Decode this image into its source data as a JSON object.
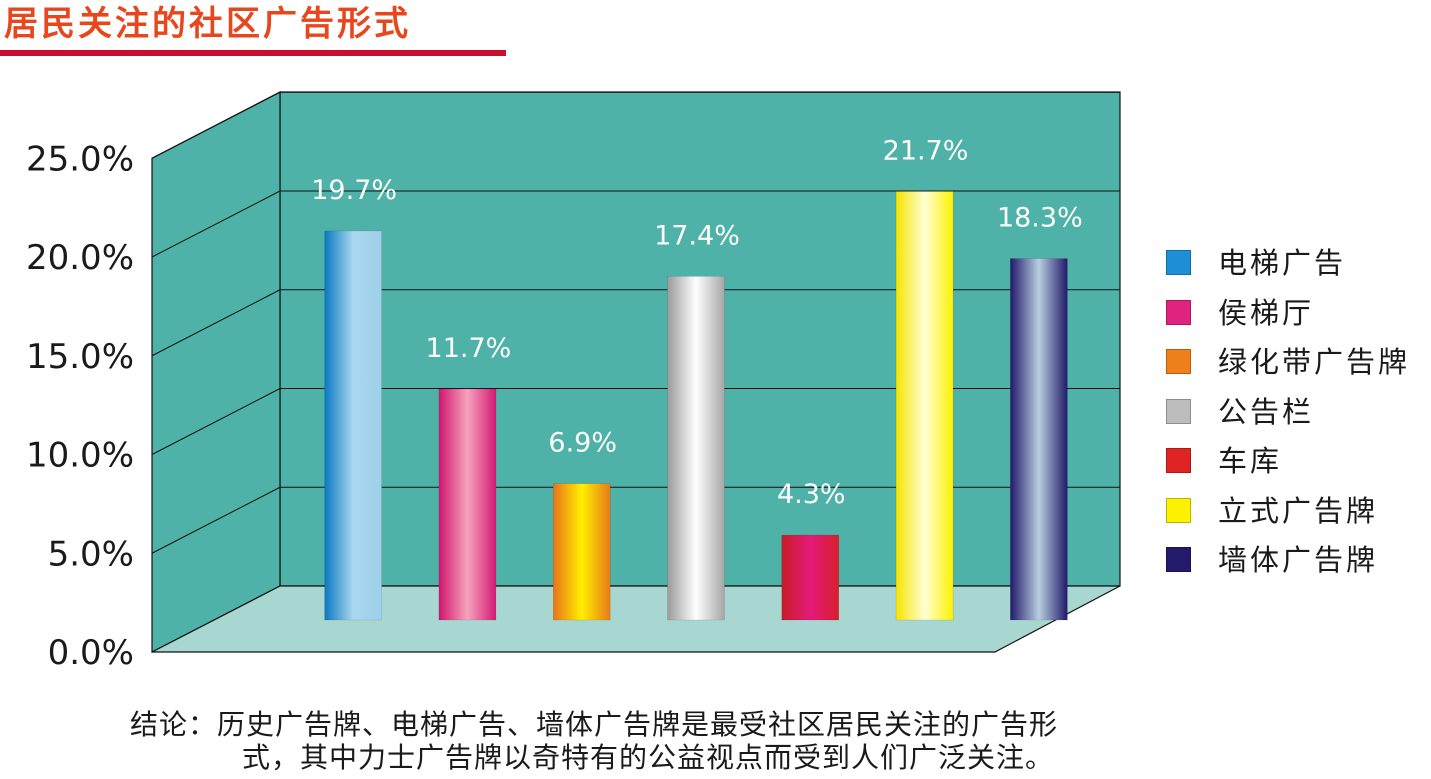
{
  "header": {
    "title": "居民关注的社区广告形式",
    "title_color": "#e8461c",
    "rule_color": "#c8102e"
  },
  "chart_data": {
    "type": "bar",
    "title": "居民关注的社区广告形式",
    "xlabel": "",
    "ylabel": "",
    "ylim": [
      0,
      25
    ],
    "yticks": [
      0,
      5,
      10,
      15,
      20,
      25
    ],
    "ytick_labels": [
      "0.0%",
      "5.0%",
      "10.0%",
      "15.0%",
      "20.0%",
      "25.0%"
    ],
    "categories": [
      "电梯广告",
      "侯梯厅",
      "绿化带广告牌",
      "公告栏",
      "车库",
      "立式广告牌",
      "墙体广告牌"
    ],
    "values": [
      19.7,
      11.7,
      6.9,
      17.4,
      4.3,
      21.7,
      18.3
    ],
    "value_labels": [
      "19.7%",
      "11.7%",
      "6.9%",
      "17.4%",
      "4.3%",
      "21.7%",
      "18.3%"
    ],
    "colors": [
      "#1e8fd6",
      "#e0237e",
      "#ee7f1b",
      "#bdbdbd",
      "#e02424",
      "#fff200",
      "#241a6b"
    ],
    "grid": true,
    "legend": "right",
    "wall_color": "#4fb2a8",
    "floor_color": "#a8d7d1"
  },
  "legend": {
    "items": [
      {
        "label": "电梯广告",
        "color": "#1e8fd6"
      },
      {
        "label": "侯梯厅",
        "color": "#e0237e"
      },
      {
        "label": "绿化带广告牌",
        "color": "#ee7f1b"
      },
      {
        "label": "公告栏",
        "color": "#bdbdbd"
      },
      {
        "label": "车库",
        "color": "#e02424"
      },
      {
        "label": "立式广告牌",
        "color": "#fff200"
      },
      {
        "label": "墙体广告牌",
        "color": "#241a6b"
      }
    ]
  },
  "conclusion": {
    "line1": "结论：历史广告牌、电梯广告、墙体广告牌是最受社区居民关注的广告形",
    "line2": "式，其中力士广告牌以奇特有的公益视点而受到人们广泛关注。"
  }
}
